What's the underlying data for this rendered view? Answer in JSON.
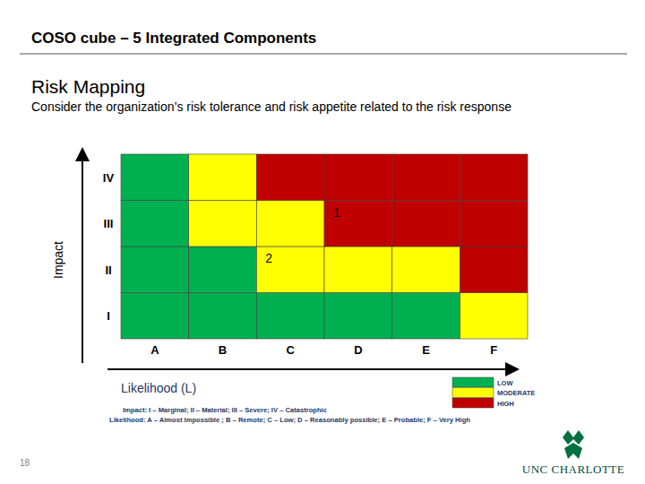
{
  "slide": {
    "title": "COSO cube – 5 Integrated Components",
    "heading": "Risk Mapping",
    "subtitle": "Consider the organization’s risk tolerance and risk appetite related to the risk response",
    "page_number": "18",
    "logo": "UNC CHARLOTTE"
  },
  "chart_data": {
    "type": "heatmap",
    "x_label": "Likelihood (L)",
    "y_label": "Impact",
    "categories": [
      "A",
      "B",
      "C",
      "D",
      "E",
      "F"
    ],
    "y_categories": [
      "I",
      "II",
      "III",
      "IV"
    ],
    "levels": [
      {
        "label": "LOW",
        "color": "#00b050"
      },
      {
        "label": "MODERATE",
        "color": "#ffff00"
      },
      {
        "label": "HIGH",
        "color": "#c00000"
      }
    ],
    "cells": [
      [
        0,
        0,
        0,
        0,
        0,
        1
      ],
      [
        0,
        0,
        1,
        1,
        1,
        2
      ],
      [
        0,
        1,
        1,
        2,
        2,
        2
      ],
      [
        0,
        1,
        2,
        2,
        2,
        2
      ]
    ],
    "points": [
      {
        "label": "1",
        "x": "D",
        "y": "III"
      },
      {
        "label": "2",
        "x": "C",
        "y": "II"
      }
    ],
    "notes": [
      "Impact: I – Marginal; II – Material; III – Severe; IV – Catastrophic",
      "Likelihood: A – Almost Impossible ; B – Remote; C – Low; D – Reasonably possible; E – Probable; F – Very High"
    ],
    "legend": "bottom-right"
  }
}
